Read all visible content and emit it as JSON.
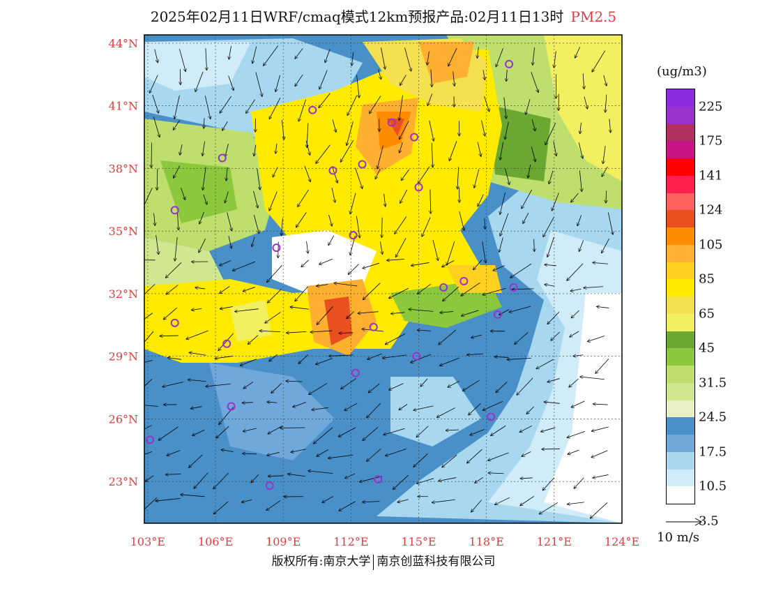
{
  "title": {
    "main": "2025年02月11日WRF/cmaq模式12km预报产品:02月11日13时",
    "pollutant": "PM2.5"
  },
  "map": {
    "lat_labels": [
      "44°N",
      "41°N",
      "38°N",
      "35°N",
      "32°N",
      "29°N",
      "26°N",
      "23°N"
    ],
    "lat_values": [
      44,
      41,
      38,
      35,
      32,
      29,
      26,
      23
    ],
    "lon_labels": [
      "103°E",
      "106°E",
      "109°E",
      "112°E",
      "115°E",
      "118°E",
      "121°E",
      "124°E"
    ],
    "lon_values": [
      103,
      106,
      109,
      112,
      115,
      118,
      121,
      124
    ],
    "lon_range": [
      102.85,
      124
    ],
    "lat_range": [
      21,
      44.4
    ]
  },
  "legend": {
    "units": "(ug/m3)",
    "colors": [
      "#8a2be2",
      "#9932cc",
      "#b03060",
      "#c71585",
      "#ff0000",
      "#ff2050",
      "#ff6060",
      "#e85020",
      "#ff8c00",
      "#ffb030",
      "#ffd020",
      "#ffea00",
      "#f5e050",
      "#f2f060",
      "#6aa832",
      "#8cc83c",
      "#bede6e",
      "#cfe890",
      "#e8f0c8",
      "#4a90c8",
      "#70a8dc",
      "#a8d8f0",
      "#d0ecf8",
      "#ffffff"
    ],
    "labels": [
      "225",
      "175",
      "141",
      "124",
      "105",
      "85",
      "65",
      "45",
      "31.5",
      "24.5",
      "17.5",
      "10.5",
      "3.5"
    ]
  },
  "wind_reference": {
    "label": "10 m/s"
  },
  "copyright": {
    "left": "版权所有:南京大学",
    "right": "南京创蓝科技有限公司"
  }
}
